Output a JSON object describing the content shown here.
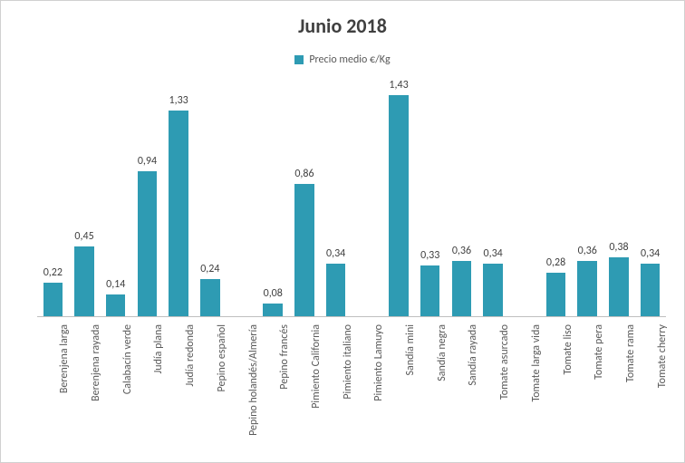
{
  "chart": {
    "type": "bar",
    "title": "Junio 2018",
    "title_fontsize": 22,
    "title_color": "#404040",
    "legend_label": "Precio medio €/Kg",
    "legend_fontsize": 12,
    "legend_color": "#595959",
    "background_color": "#ffffff",
    "axis_line_color": "#bfbfbf",
    "bar_color": "#2e9bb3",
    "bar_width_ratio": 0.62,
    "data_label_fontsize": 12,
    "data_label_color": "#404040",
    "x_label_fontsize": 12,
    "x_label_color": "#595959",
    "ylim": [
      0,
      1.55
    ],
    "decimal_separator": ",",
    "categories": [
      "Berenjena larga",
      "Berenjena rayada",
      "Calabacín verde",
      "Judía plana",
      "Judía redonda",
      "Pepino español",
      "Pepino holandés/Almería",
      "Pepino francés",
      "Pimiento California",
      "Pimiento italiano",
      "Pimiento Lamuyo",
      "Sandía mini",
      "Sandía negra",
      "Sandía rayada",
      "Tomate asurcado",
      "Tomate larga vida",
      "Tomate liso",
      "Tomate pera",
      "Tomate rama",
      "Tomate cherry"
    ],
    "values": [
      0.22,
      0.45,
      0.14,
      0.94,
      1.33,
      0.24,
      null,
      0.08,
      0.86,
      0.34,
      null,
      1.43,
      0.33,
      0.36,
      0.34,
      null,
      0.28,
      0.36,
      0.38,
      0.34
    ],
    "value_labels": [
      "0,22",
      "0,45",
      "0,14",
      "0,94",
      "1,33",
      "0,24",
      "",
      "0,08",
      "0,86",
      "0,34",
      "",
      "1,43",
      "0,33",
      "0,36",
      "0,34",
      "",
      "0,28",
      "0,36",
      "0,38",
      "0,34"
    ]
  }
}
